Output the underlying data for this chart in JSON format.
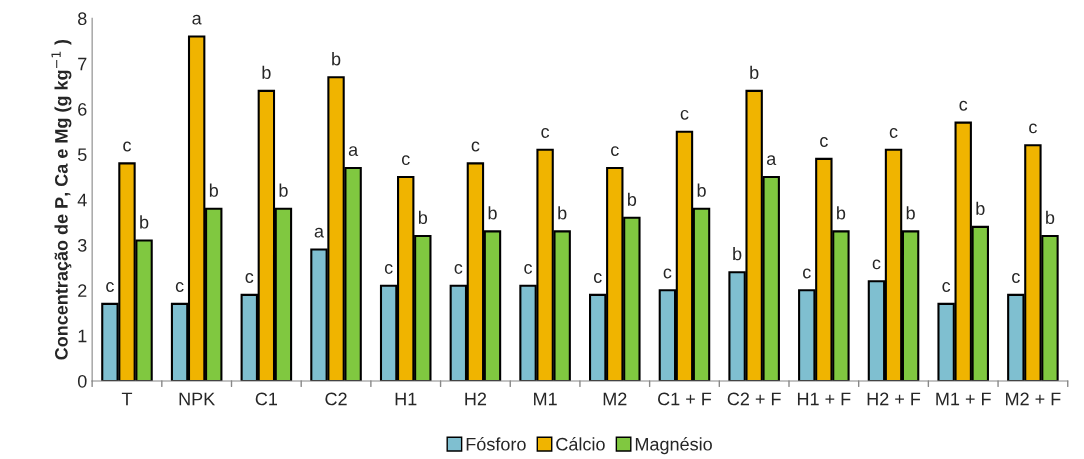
{
  "chart_data": {
    "type": "bar",
    "ylabel": "Concentração de P, Ca e Mg (g kg$^{−1}$ )",
    "categories": [
      "T",
      "NPK",
      "C1",
      "C2",
      "H1",
      "H2",
      "M1",
      "M2",
      "C1 + F",
      "C2 + F",
      "H1 + F",
      "H2 + F",
      "M1 + F",
      "M2 + F"
    ],
    "series": [
      {
        "name": "Fósforo",
        "color": "#7fbfd0",
        "values": [
          1.7,
          1.7,
          1.9,
          2.9,
          2.1,
          2.1,
          2.1,
          1.9,
          2.0,
          2.4,
          2.0,
          2.2,
          1.7,
          1.9
        ],
        "value_labels": [
          "c",
          "c",
          "c",
          "a",
          "c",
          "c",
          "c",
          "c",
          "c",
          "b",
          "c",
          "c",
          "c",
          "c"
        ]
      },
      {
        "name": "Cálcio",
        "color": "#f0b400",
        "values": [
          4.8,
          7.6,
          6.4,
          6.7,
          4.5,
          4.8,
          5.1,
          4.7,
          5.5,
          6.4,
          4.9,
          5.1,
          5.7,
          5.2
        ],
        "value_labels": [
          "c",
          "a",
          "b",
          "b",
          "c",
          "c",
          "c",
          "c",
          "c",
          "b",
          "c",
          "c",
          "c",
          "c"
        ]
      },
      {
        "name": "Magnésio",
        "color": "#80c840",
        "values": [
          3.1,
          3.8,
          3.8,
          4.7,
          3.2,
          3.3,
          3.3,
          3.6,
          3.8,
          4.5,
          3.3,
          3.3,
          3.4,
          3.2
        ],
        "value_labels": [
          "b",
          "b",
          "b",
          "a",
          "b",
          "b",
          "b",
          "b",
          "b",
          "a",
          "b",
          "b",
          "b",
          "b"
        ]
      }
    ],
    "ylim": [
      0,
      8
    ],
    "yticks": [
      0,
      1,
      2,
      3,
      4,
      5,
      6,
      7,
      8
    ],
    "legend": "bottom",
    "grid": false
  }
}
